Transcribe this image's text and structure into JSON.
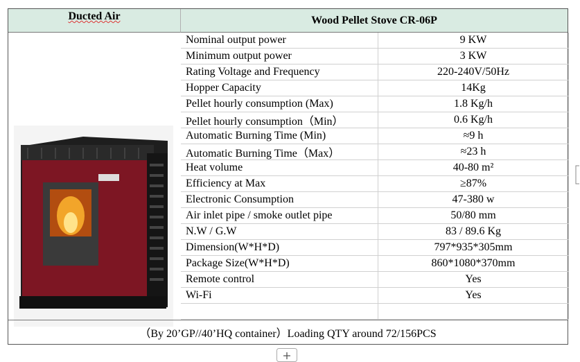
{
  "header": {
    "left": "Ducted Air",
    "title": "Wood Pellet Stove CR-06P"
  },
  "table": {
    "rows": [
      [
        "Nominal output power",
        "9 KW"
      ],
      [
        "Minimum output power",
        "3 KW"
      ],
      [
        "Rating Voltage and Frequency",
        "220-240V/50Hz"
      ],
      [
        "Hopper Capacity",
        "14Kg"
      ],
      [
        "Pellet hourly consumption (Max)",
        "1.8 Kg/h"
      ],
      [
        "Pellet hourly consumption（Min）",
        "0.6 Kg/h"
      ],
      [
        "Automatic Burning Time (Min)",
        "≈9 h"
      ],
      [
        "Automatic Burning Time（Max）",
        "≈23 h"
      ],
      [
        "Heat volume",
        "40-80 m²"
      ],
      [
        "Efficiency at Max",
        "≥87%"
      ],
      [
        "Electronic Consumption",
        "47-380 w"
      ],
      [
        "Air inlet pipe / smoke outlet pipe",
        "50/80 mm"
      ],
      [
        "N.W / G.W",
        "83 / 89.6 Kg"
      ],
      [
        "Dimension(W*H*D)",
        "797*935*305mm"
      ],
      [
        "Package Size(W*H*D)",
        "860*1080*370mm"
      ],
      [
        "Remote control",
        "Yes"
      ],
      [
        "Wi-Fi",
        "Yes"
      ]
    ]
  },
  "footer": "（By 20’GP//40’HQ container）Loading QTY around 72/156PCS"
}
